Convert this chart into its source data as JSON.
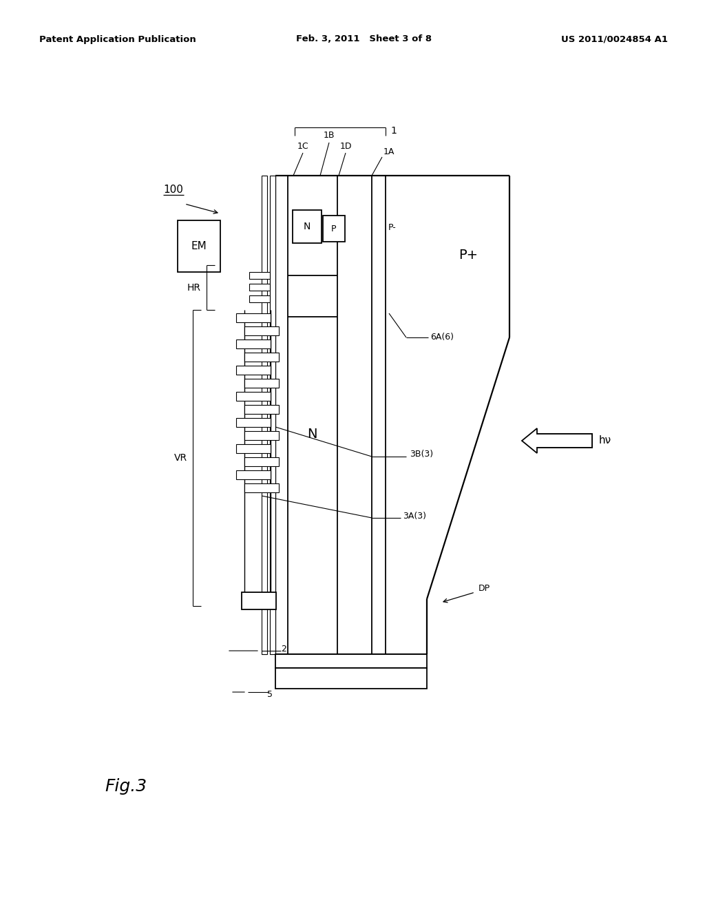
{
  "header_left": "Patent Application Publication",
  "header_mid": "Feb. 3, 2011   Sheet 3 of 8",
  "header_right": "US 2011/0024854 A1",
  "fig_label": "Fig.3",
  "bg_color": "#ffffff",
  "lc": "#000000",
  "labels": {
    "main_ref": "1",
    "1A": "1A",
    "1B": "1B",
    "1C": "1C",
    "1D": "1D",
    "2": "2",
    "5": "5",
    "EM": "EM",
    "N_top": "N",
    "P_top": "P",
    "P_minus": "P-",
    "P_plus": "P+",
    "N_mid": "N",
    "HR": "HR",
    "VR": "VR",
    "DP": "DP",
    "hv": "hν",
    "6A6": "6A(6)",
    "3B3": "3B(3)",
    "3A3": "3A(3)",
    "ref100": "100"
  }
}
